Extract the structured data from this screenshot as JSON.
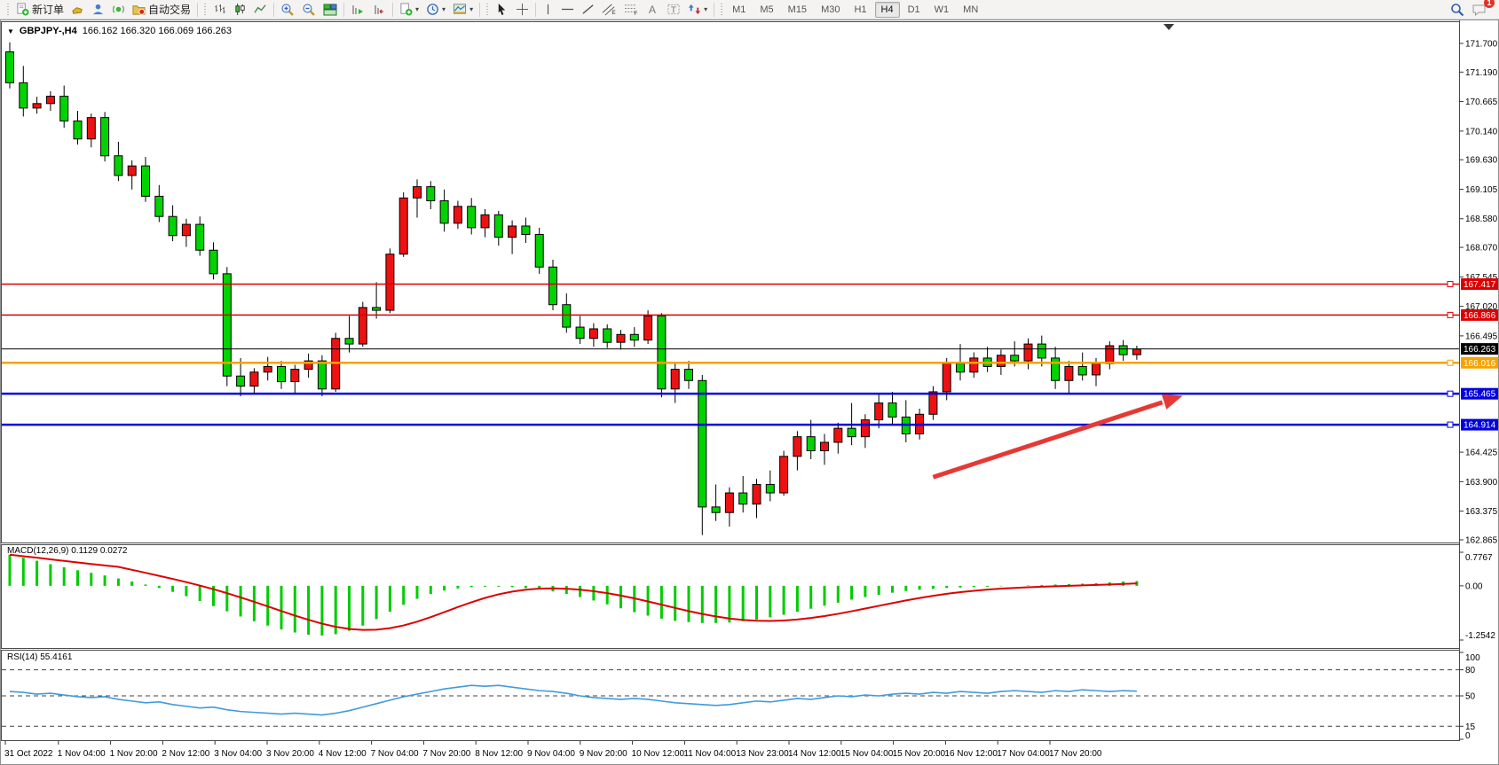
{
  "toolbar": {
    "new_order_label": "新订单",
    "autotrading_label": "自动交易",
    "timeframes": [
      "M1",
      "M5",
      "M15",
      "M30",
      "H1",
      "H4",
      "D1",
      "W1",
      "MN"
    ],
    "active_timeframe": "H4",
    "notification_badge": "1",
    "icons": [
      "new-order",
      "chart-profiles",
      "market-watch",
      "signals",
      "autotrading",
      "bar-chart",
      "candlestick-chart",
      "line-chart",
      "zoom-in",
      "zoom-out",
      "tile-windows",
      "auto-scroll",
      "chart-shift",
      "new-chart",
      "clock",
      "templates",
      "cursor",
      "crosshair",
      "vertical-line",
      "horizontal-line",
      "trendline",
      "equidistant-channel",
      "fibonacci",
      "text",
      "text-label",
      "arrows",
      "search",
      "chat"
    ]
  },
  "window": {
    "title": "GBPJPY-,H4",
    "ohlc": "166.162 166.320 166.069 166.263"
  },
  "chart_data": [
    {
      "type": "candlestick",
      "title": "GBPJPY- H4",
      "timeframe": "H4",
      "up_color": "#ee1111",
      "down_color": "#00d300",
      "outline_color": "#000000",
      "ylim": [
        162.8,
        172.08
      ],
      "price_axis_ticks": [
        "171.700",
        "171.190",
        "170.665",
        "170.140",
        "169.630",
        "169.105",
        "168.580",
        "168.070",
        "167.545",
        "167.020",
        "166.495",
        "164.425",
        "163.900",
        "163.375",
        "162.865"
      ],
      "price_lines": [
        {
          "price": 167.417,
          "label": "167.417",
          "color": "#dd0000",
          "width": 1.5,
          "text_color": "#ffffff"
        },
        {
          "price": 166.866,
          "label": "166.866",
          "color": "#dd0000",
          "width": 1.5,
          "text_color": "#ffffff"
        },
        {
          "price": 166.263,
          "label": "166.263",
          "color": "#000000",
          "width": 1,
          "text_color": "#ffffff"
        },
        {
          "price": 166.016,
          "label": "166.016",
          "color": "#f5a300",
          "width": 2.5,
          "text_color": "#ffffff"
        },
        {
          "price": 165.465,
          "label": "165.465",
          "color": "#0000dd",
          "width": 2.5,
          "text_color": "#ffffff"
        },
        {
          "price": 164.914,
          "label": "164.914",
          "color": "#0000dd",
          "width": 2.5,
          "text_color": "#ffffff"
        }
      ],
      "x_labels": [
        "31 Oct 2022",
        "1 Nov 04:00",
        "1 Nov 20:00",
        "2 Nov 12:00",
        "3 Nov 04:00",
        "3 Nov 20:00",
        "4 Nov 12:00",
        "7 Nov 04:00",
        "7 Nov 20:00",
        "8 Nov 12:00",
        "9 Nov 04:00",
        "9 Nov 20:00",
        "10 Nov 12:00",
        "11 Nov 04:00",
        "13 Nov 23:00",
        "14 Nov 12:00",
        "15 Nov 04:00",
        "15 Nov 20:00",
        "16 Nov 12:00",
        "17 Nov 04:00",
        "17 Nov 20:00"
      ],
      "candles": [
        [
          171.55,
          171.72,
          170.9,
          171.0
        ],
        [
          171.0,
          171.3,
          170.4,
          170.55
        ],
        [
          170.55,
          170.75,
          170.45,
          170.63
        ],
        [
          170.63,
          170.85,
          170.5,
          170.76
        ],
        [
          170.76,
          170.95,
          170.2,
          170.32
        ],
        [
          170.32,
          170.5,
          169.9,
          170.0
        ],
        [
          170.0,
          170.45,
          169.85,
          170.38
        ],
        [
          170.38,
          170.48,
          169.6,
          169.7
        ],
        [
          169.7,
          169.95,
          169.25,
          169.35
        ],
        [
          169.35,
          169.62,
          169.1,
          169.52
        ],
        [
          169.52,
          169.68,
          168.88,
          168.98
        ],
        [
          168.98,
          169.18,
          168.52,
          168.62
        ],
        [
          168.62,
          168.82,
          168.18,
          168.28
        ],
        [
          168.28,
          168.58,
          168.08,
          168.48
        ],
        [
          168.48,
          168.62,
          167.92,
          168.02
        ],
        [
          168.02,
          168.16,
          167.5,
          167.6
        ],
        [
          167.6,
          167.72,
          165.6,
          165.78
        ],
        [
          165.78,
          166.1,
          165.42,
          165.6
        ],
        [
          165.6,
          165.92,
          165.45,
          165.85
        ],
        [
          165.85,
          166.12,
          165.7,
          165.95
        ],
        [
          165.95,
          166.05,
          165.55,
          165.68
        ],
        [
          165.68,
          165.98,
          165.48,
          165.9
        ],
        [
          165.9,
          166.18,
          165.75,
          166.05
        ],
        [
          166.05,
          166.15,
          165.42,
          165.55
        ],
        [
          165.55,
          166.55,
          165.5,
          166.45
        ],
        [
          166.45,
          166.85,
          166.2,
          166.35
        ],
        [
          166.35,
          167.1,
          166.3,
          167.0
        ],
        [
          167.0,
          167.45,
          166.8,
          166.95
        ],
        [
          166.95,
          168.05,
          166.9,
          167.95
        ],
        [
          167.95,
          169.05,
          167.9,
          168.95
        ],
        [
          168.95,
          169.28,
          168.6,
          169.15
        ],
        [
          169.15,
          169.25,
          168.75,
          168.9
        ],
        [
          168.9,
          169.1,
          168.35,
          168.5
        ],
        [
          168.5,
          168.9,
          168.4,
          168.8
        ],
        [
          168.8,
          168.95,
          168.3,
          168.42
        ],
        [
          168.42,
          168.75,
          168.25,
          168.65
        ],
        [
          168.65,
          168.72,
          168.1,
          168.25
        ],
        [
          168.25,
          168.55,
          167.95,
          168.45
        ],
        [
          168.45,
          168.6,
          168.15,
          168.3
        ],
        [
          168.3,
          168.42,
          167.6,
          167.72
        ],
        [
          167.72,
          167.85,
          166.95,
          167.05
        ],
        [
          167.05,
          167.25,
          166.55,
          166.65
        ],
        [
          166.65,
          166.85,
          166.35,
          166.45
        ],
        [
          166.45,
          166.72,
          166.3,
          166.62
        ],
        [
          166.62,
          166.7,
          166.28,
          166.38
        ],
        [
          166.38,
          166.6,
          166.25,
          166.52
        ],
        [
          166.52,
          166.65,
          166.3,
          166.42
        ],
        [
          166.42,
          166.95,
          166.35,
          166.85
        ],
        [
          166.85,
          166.9,
          165.4,
          165.55
        ],
        [
          165.55,
          166.0,
          165.3,
          165.9
        ],
        [
          165.9,
          166.05,
          165.55,
          165.7
        ],
        [
          165.7,
          165.8,
          162.95,
          163.45
        ],
        [
          163.45,
          163.85,
          163.2,
          163.35
        ],
        [
          163.35,
          163.8,
          163.1,
          163.7
        ],
        [
          163.7,
          164.0,
          163.35,
          163.5
        ],
        [
          163.5,
          163.95,
          163.25,
          163.85
        ],
        [
          163.85,
          164.1,
          163.55,
          163.7
        ],
        [
          163.7,
          164.45,
          163.65,
          164.35
        ],
        [
          164.35,
          164.8,
          164.1,
          164.7
        ],
        [
          164.7,
          165.0,
          164.3,
          164.45
        ],
        [
          164.45,
          164.75,
          164.2,
          164.6
        ],
        [
          164.6,
          164.95,
          164.4,
          164.85
        ],
        [
          164.85,
          165.3,
          164.55,
          164.7
        ],
        [
          164.7,
          165.1,
          164.5,
          165.0
        ],
        [
          165.0,
          165.45,
          164.85,
          165.3
        ],
        [
          165.3,
          165.5,
          164.9,
          165.05
        ],
        [
          165.05,
          165.35,
          164.6,
          164.75
        ],
        [
          164.75,
          165.2,
          164.65,
          165.1
        ],
        [
          165.1,
          165.6,
          165.0,
          165.5
        ],
        [
          165.5,
          166.1,
          165.35,
          166.0
        ],
        [
          166.0,
          166.35,
          165.7,
          165.85
        ],
        [
          165.85,
          166.2,
          165.75,
          166.1
        ],
        [
          166.1,
          166.3,
          165.85,
          165.95
        ],
        [
          165.95,
          166.25,
          165.8,
          166.15
        ],
        [
          166.15,
          166.4,
          165.95,
          166.05
        ],
        [
          166.05,
          166.45,
          165.9,
          166.35
        ],
        [
          166.35,
          166.5,
          165.95,
          166.1
        ],
        [
          166.1,
          166.3,
          165.55,
          165.7
        ],
        [
          165.7,
          166.05,
          165.45,
          165.95
        ],
        [
          165.95,
          166.2,
          165.7,
          165.8
        ],
        [
          165.8,
          166.1,
          165.6,
          166.0
        ],
        [
          166.0,
          166.4,
          165.9,
          166.32
        ],
        [
          166.32,
          166.42,
          166.05,
          166.16
        ],
        [
          166.16,
          166.32,
          166.07,
          166.26
        ]
      ],
      "annotation_arrow": {
        "from_index": 68,
        "from_price": 163.98,
        "to_index": 85.5,
        "to_price": 165.36,
        "color": "#e53935"
      }
    },
    {
      "type": "bar",
      "name": "MACD",
      "label": "MACD(12,26,9) 0.1129 0.0272",
      "axis_ticks": [
        {
          "v": 0.7767,
          "label": "0.7767"
        },
        {
          "v": 0,
          "label": "0.00"
        },
        {
          "v": -1.2542,
          "label": "-1.2542"
        }
      ],
      "ylim": [
        -1.2542,
        0.7767
      ],
      "histogram_color": "#00cc00",
      "signal_color": "#dd0000",
      "histogram": [
        0.72,
        0.65,
        0.58,
        0.5,
        0.43,
        0.36,
        0.3,
        0.24,
        0.17,
        0.1,
        0.03,
        -0.05,
        -0.14,
        -0.24,
        -0.35,
        -0.47,
        -0.59,
        -0.71,
        -0.82,
        -0.92,
        -1.01,
        -1.08,
        -1.13,
        -1.15,
        -1.12,
        -1.04,
        -0.92,
        -0.77,
        -0.6,
        -0.44,
        -0.3,
        -0.19,
        -0.11,
        -0.06,
        -0.03,
        -0.02,
        -0.02,
        -0.03,
        -0.05,
        -0.08,
        -0.13,
        -0.19,
        -0.26,
        -0.34,
        -0.43,
        -0.52,
        -0.61,
        -0.69,
        -0.76,
        -0.81,
        -0.84,
        -0.86,
        -0.86,
        -0.85,
        -0.82,
        -0.78,
        -0.73,
        -0.67,
        -0.6,
        -0.53,
        -0.46,
        -0.39,
        -0.32,
        -0.26,
        -0.21,
        -0.16,
        -0.12,
        -0.09,
        -0.07,
        -0.05,
        -0.04,
        -0.03,
        -0.02,
        -0.01,
        0.0,
        0.01,
        0.02,
        0.03,
        0.04,
        0.05,
        0.06,
        0.08,
        0.1,
        0.11
      ]
    },
    {
      "type": "line",
      "name": "RSI",
      "label": "RSI(14) 55.4161",
      "axis_ticks": [
        {
          "v": 100,
          "label": "100"
        },
        {
          "v": 80,
          "label": "80"
        },
        {
          "v": 50,
          "label": "50"
        },
        {
          "v": 15,
          "label": "15"
        },
        {
          "v": 0,
          "label": "0"
        }
      ],
      "levels": [
        80,
        50,
        15
      ],
      "ylim": [
        0,
        100
      ],
      "line_color": "#3f9bdc",
      "values": [
        55,
        54,
        52,
        53,
        51,
        49,
        48,
        49,
        46,
        44,
        42,
        43,
        40,
        38,
        36,
        37,
        34,
        32,
        31,
        30,
        29,
        30,
        29,
        28,
        30,
        33,
        37,
        41,
        45,
        49,
        52,
        55,
        58,
        60,
        62,
        61,
        62,
        60,
        58,
        56,
        55,
        53,
        50,
        48,
        47,
        46,
        47,
        46,
        44,
        42,
        41,
        40,
        39,
        40,
        42,
        44,
        43,
        45,
        47,
        46,
        48,
        50,
        49,
        51,
        50,
        52,
        53,
        52,
        54,
        53,
        55,
        54,
        53,
        55,
        56,
        55,
        54,
        56,
        55,
        57,
        56,
        55,
        56,
        55.4
      ]
    }
  ]
}
